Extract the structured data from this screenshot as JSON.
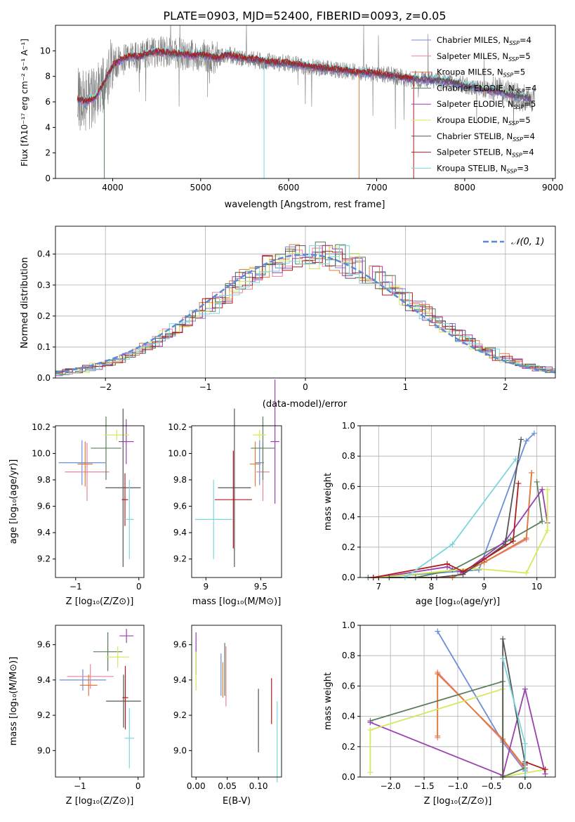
{
  "title": "PLATE=0903, MJD=52400, FIBERID=0093, z=0.05",
  "colors": [
    "#6a8fd8",
    "#e8849a",
    "#e07b39",
    "#5a7e5c",
    "#9b3fb0",
    "#d4e85a",
    "#555555",
    "#b01c1c",
    "#7ad6dc"
  ],
  "legend_entries": [
    {
      "name": "Chabrier MILES",
      "nssp": "4"
    },
    {
      "name": "Salpeter MILES",
      "nssp": "5"
    },
    {
      "name": "Kroupa MILES",
      "nssp": "5"
    },
    {
      "name": "Chabrier ELODIE",
      "nssp": "4"
    },
    {
      "name": "Salpeter ELODIE",
      "nssp": "5"
    },
    {
      "name": "Kroupa ELODIE",
      "nssp": "5"
    },
    {
      "name": "Chabrier STELIB",
      "nssp": "4"
    },
    {
      "name": "Salpeter STELIB",
      "nssp": "4"
    },
    {
      "name": "Kroupa STELIB",
      "nssp": "3"
    }
  ],
  "chart_data": [
    {
      "id": "spectrum",
      "type": "line",
      "xlabel": "wavelength [Angstrom, rest frame]",
      "ylabel": "Flux [fλ10⁻¹⁷ erg cm⁻² s⁻¹ A⁻¹]",
      "xlim": [
        3350,
        9030
      ],
      "ylim": [
        0,
        12
      ],
      "xticks": [
        4000,
        5000,
        6000,
        7000,
        8000,
        9000
      ],
      "yticks": [
        0,
        2,
        4,
        6,
        8,
        10
      ],
      "data_range": [
        3600,
        8800
      ],
      "continuum": [
        [
          3600,
          6.2
        ],
        [
          3700,
          6.0
        ],
        [
          3800,
          6.3
        ],
        [
          3900,
          7.5
        ],
        [
          4000,
          8.8
        ],
        [
          4100,
          9.3
        ],
        [
          4200,
          9.6
        ],
        [
          4300,
          9.5
        ],
        [
          4400,
          9.8
        ],
        [
          4500,
          9.9
        ],
        [
          4700,
          9.8
        ],
        [
          4900,
          9.6
        ],
        [
          5000,
          9.7
        ],
        [
          5200,
          9.4
        ],
        [
          5300,
          9.7
        ],
        [
          5500,
          9.4
        ],
        [
          5800,
          9.1
        ],
        [
          6000,
          9.0
        ],
        [
          6200,
          8.8
        ],
        [
          6400,
          8.6
        ],
        [
          6600,
          8.5
        ],
        [
          6800,
          8.3
        ],
        [
          7000,
          8.2
        ],
        [
          7200,
          8.0
        ],
        [
          7400,
          7.8
        ],
        [
          7600,
          7.7
        ],
        [
          7800,
          7.6
        ],
        [
          8000,
          7.3
        ],
        [
          8200,
          7.0
        ],
        [
          8400,
          6.8
        ],
        [
          8600,
          6.4
        ],
        [
          8800,
          6.2
        ]
      ],
      "grid": false,
      "legend_position": "upper right"
    },
    {
      "id": "residuals",
      "type": "histogram",
      "xlabel": "(data-model)/error",
      "ylabel": "Normed distribution",
      "xlim": [
        -2.5,
        2.5
      ],
      "ylim": [
        0,
        0.49
      ],
      "xticks": [
        -2,
        -1,
        0,
        1,
        2
      ],
      "yticks": [
        0.0,
        0.1,
        0.2,
        0.3,
        0.4
      ],
      "bin_width": 0.1,
      "grid": true,
      "legend": "𝒩(0, 1)",
      "legend_position": "upper right"
    },
    {
      "id": "age_vs_Z",
      "type": "errorbar",
      "xlabel": "Z [log₁₀(Z/Z⊙)]",
      "ylabel": "age  [log₁₀(age/yr)]",
      "xlim": [
        -1.32,
        0.08
      ],
      "ylim": [
        9.06,
        10.21
      ],
      "xticks": [
        -1,
        0
      ],
      "yticks": [
        9.2,
        9.4,
        9.6,
        9.8,
        10.0,
        10.2
      ],
      "points": [
        {
          "x": -0.9,
          "y": 9.93,
          "xerr": 0.37,
          "yerr": 0.17
        },
        {
          "x": -0.82,
          "y": 9.86,
          "xerr": 0.35,
          "yerr": 0.22
        },
        {
          "x": -0.85,
          "y": 9.92,
          "xerr": 0.12,
          "yerr": 0.17
        },
        {
          "x": -0.52,
          "y": 10.04,
          "xerr": 0.24,
          "yerr": 0.24
        },
        {
          "x": -0.2,
          "y": 10.09,
          "xerr": 0.12,
          "yerr": 0.17
        },
        {
          "x": -0.35,
          "y": 10.14,
          "xerr": 0.2,
          "yerr": 0.04
        },
        {
          "x": -0.25,
          "y": 9.74,
          "xerr": 0.28,
          "yerr": 0.6
        },
        {
          "x": -0.22,
          "y": 9.65,
          "xerr": 0.05,
          "yerr": 0.2
        },
        {
          "x": -0.15,
          "y": 9.5,
          "xerr": 0.07,
          "yerr": 0.3
        }
      ]
    },
    {
      "id": "age_vs_mass",
      "type": "errorbar",
      "xlabel": "mass [log₁₀(M/M⊙)]",
      "ylabel": "",
      "xlim": [
        8.87,
        9.69
      ],
      "ylim": [
        9.06,
        10.21
      ],
      "xticks": [
        9.0,
        9.5
      ],
      "yticks": [
        9.2,
        9.4,
        9.6,
        9.8,
        10.0,
        10.2
      ],
      "points": [
        {
          "x": 9.49,
          "y": 9.93,
          "xerr": 0.04,
          "yerr": 0.17
        },
        {
          "x": 9.52,
          "y": 9.86,
          "xerr": 0.06,
          "yerr": 0.22
        },
        {
          "x": 9.45,
          "y": 9.92,
          "xerr": 0.05,
          "yerr": 0.17
        },
        {
          "x": 9.52,
          "y": 10.04,
          "xerr": 0.11,
          "yerr": 0.24
        },
        {
          "x": 9.63,
          "y": 10.09,
          "xerr": 0.04,
          "yerr": 0.47
        },
        {
          "x": 9.49,
          "y": 10.14,
          "xerr": 0.06,
          "yerr": 0.04
        },
        {
          "x": 9.26,
          "y": 9.74,
          "xerr": 0.15,
          "yerr": 0.6
        },
        {
          "x": 9.25,
          "y": 9.65,
          "xerr": 0.17,
          "yerr": 0.37
        },
        {
          "x": 9.07,
          "y": 9.5,
          "xerr": 0.17,
          "yerr": 0.3
        }
      ]
    },
    {
      "id": "weight_vs_age",
      "type": "line",
      "xlabel": "age  [log₁₀(age/yr)]",
      "ylabel": "mass weight",
      "xlim": [
        6.65,
        10.35
      ],
      "ylim": [
        0,
        1.0
      ],
      "xticks": [
        7,
        8,
        9,
        10
      ],
      "yticks": [
        0.0,
        0.2,
        0.4,
        0.6,
        0.8,
        1.0
      ],
      "grid": true,
      "series": [
        {
          "x": [
            6.9,
            8.5,
            8.9,
            9.8,
            9.95
          ],
          "y": [
            0.0,
            0.04,
            0.05,
            0.9,
            0.95
          ]
        },
        {
          "x": [
            6.9,
            8.4,
            9.0,
            9.8,
            9.9
          ],
          "y": [
            0.0,
            0.0,
            0.1,
            0.25,
            0.69
          ]
        },
        {
          "x": [
            6.9,
            8.4,
            9.0,
            9.8,
            9.9
          ],
          "y": [
            0.0,
            0.0,
            0.1,
            0.26,
            0.69
          ]
        },
        {
          "x": [
            6.8,
            7.7,
            8.4,
            9.5,
            10.1,
            10.0
          ],
          "y": [
            0.0,
            0.0,
            0.05,
            0.25,
            0.37,
            0.63
          ]
        },
        {
          "x": [
            7.0,
            8.3,
            8.6,
            9.4,
            10.1,
            10.2
          ],
          "y": [
            0.0,
            0.07,
            0.03,
            0.24,
            0.58,
            0.36
          ]
        },
        {
          "x": [
            7.0,
            8.8,
            9.8,
            10.2,
            10.2
          ],
          "y": [
            0.0,
            0.06,
            0.03,
            0.31,
            0.58
          ]
        },
        {
          "x": [
            7.2,
            8.1,
            8.6,
            9.4,
            9.7
          ],
          "y": [
            0.0,
            0.0,
            0.02,
            0.22,
            0.91
          ]
        },
        {
          "x": [
            6.9,
            8.3,
            8.6,
            9.0,
            9.55,
            9.65
          ],
          "y": [
            0.0,
            0.09,
            0.04,
            0.12,
            0.24,
            0.62
          ]
        },
        {
          "x": [
            7.5,
            8.4,
            9.6
          ],
          "y": [
            0.0,
            0.22,
            0.78
          ]
        }
      ]
    },
    {
      "id": "mass_vs_Z",
      "type": "errorbar",
      "xlabel": "Z [log₁₀(Z/Z⊙)]",
      "ylabel": "mass [log₁₀(M/M⊙)]",
      "xlim": [
        -1.42,
        0.1
      ],
      "ylim": [
        8.85,
        9.71
      ],
      "xticks": [
        -1,
        0
      ],
      "yticks": [
        9.0,
        9.2,
        9.4,
        9.6
      ],
      "points": [
        {
          "x": -0.95,
          "y": 9.4,
          "xerr": 0.4,
          "yerr": 0.06
        },
        {
          "x": -0.82,
          "y": 9.42,
          "xerr": 0.4,
          "yerr": 0.07
        },
        {
          "x": -0.85,
          "y": 9.37,
          "xerr": 0.15,
          "yerr": 0.06
        },
        {
          "x": -0.52,
          "y": 9.56,
          "xerr": 0.25,
          "yerr": 0.11
        },
        {
          "x": -0.2,
          "y": 9.65,
          "xerr": 0.12,
          "yerr": 0.04
        },
        {
          "x": -0.35,
          "y": 9.53,
          "xerr": 0.2,
          "yerr": 0.06
        },
        {
          "x": -0.25,
          "y": 9.28,
          "xerr": 0.3,
          "yerr": 0.15
        },
        {
          "x": -0.22,
          "y": 9.3,
          "xerr": 0.05,
          "yerr": 0.18
        },
        {
          "x": -0.15,
          "y": 9.07,
          "xerr": 0.08,
          "yerr": 0.17
        }
      ]
    },
    {
      "id": "mass_vs_ebv",
      "type": "errorbar",
      "xlabel": "E(B-V)",
      "ylabel": "",
      "xlim": [
        -0.007,
        0.137
      ],
      "ylim": [
        8.85,
        9.71
      ],
      "xticks": [
        0.0,
        0.05,
        0.1
      ],
      "xticklabels": [
        "0.00",
        "0.05",
        "0.10"
      ],
      "yticks": [
        9.0,
        9.2,
        9.4,
        9.6
      ],
      "points": [
        {
          "x": 0.04,
          "y": 9.43,
          "yerr": 0.12
        },
        {
          "x": 0.048,
          "y": 9.42,
          "yerr": 0.17
        },
        {
          "x": 0.043,
          "y": 9.4,
          "yerr": 0.1
        },
        {
          "x": 0.046,
          "y": 9.46,
          "yerr": 0.15
        },
        {
          "x": 0.0,
          "y": 9.55,
          "yerr": 0.12
        },
        {
          "x": 0.0,
          "y": 9.45,
          "yerr": 0.11
        },
        {
          "x": 0.1,
          "y": 9.17,
          "yerr": 0.18
        },
        {
          "x": 0.121,
          "y": 9.28,
          "yerr": 0.13
        },
        {
          "x": 0.13,
          "y": 9.05,
          "yerr": 0.23
        }
      ]
    },
    {
      "id": "weight_vs_Z",
      "type": "line",
      "xlabel": "Z [log₁₀(Z/Z⊙)]",
      "ylabel": "mass weight",
      "xlim": [
        -2.45,
        0.45
      ],
      "ylim": [
        0,
        1.0
      ],
      "xticks": [
        -2.0,
        -1.5,
        -1.0,
        -0.5,
        0.0
      ],
      "xticklabels": [
        "−2.0",
        "−1.5",
        "−1.0",
        "−0.5",
        "0.0"
      ],
      "yticks": [
        0.0,
        0.2,
        0.4,
        0.6,
        0.8,
        1.0
      ],
      "grid": true,
      "series": [
        {
          "x": [
            -1.3,
            -0.33,
            0.0,
            0.0
          ],
          "y": [
            0.96,
            0.23,
            0.04,
            0.08
          ]
        },
        {
          "x": [
            -1.3,
            -1.3,
            -0.33,
            0.0
          ],
          "y": [
            0.26,
            0.69,
            0.24,
            0.05
          ]
        },
        {
          "x": [
            -1.3,
            -1.3,
            -0.33,
            0.0
          ],
          "y": [
            0.27,
            0.68,
            0.25,
            0.06
          ]
        },
        {
          "x": [
            -2.3,
            -0.33,
            -0.33,
            0.0
          ],
          "y": [
            0.37,
            0.63,
            0.0,
            0.06
          ]
        },
        {
          "x": [
            -2.3,
            -0.33,
            0.0,
            0.3,
            0.3
          ],
          "y": [
            0.36,
            0.01,
            0.58,
            0.02,
            0.05
          ]
        },
        {
          "x": [
            -2.3,
            -2.3,
            -0.33,
            -0.33,
            0.3
          ],
          "y": [
            0.03,
            0.31,
            0.58,
            0.0,
            0.05
          ]
        },
        {
          "x": [
            -0.33,
            -0.33,
            0.0
          ],
          "y": [
            0.0,
            0.91,
            0.09
          ]
        },
        {
          "x": [
            0.0,
            0.0,
            0.3
          ],
          "y": [
            0.08,
            0.1,
            0.05
          ]
        },
        {
          "x": [
            -0.33,
            0.0,
            0.0
          ],
          "y": [
            0.78,
            0.22,
            0.0
          ]
        }
      ]
    }
  ]
}
